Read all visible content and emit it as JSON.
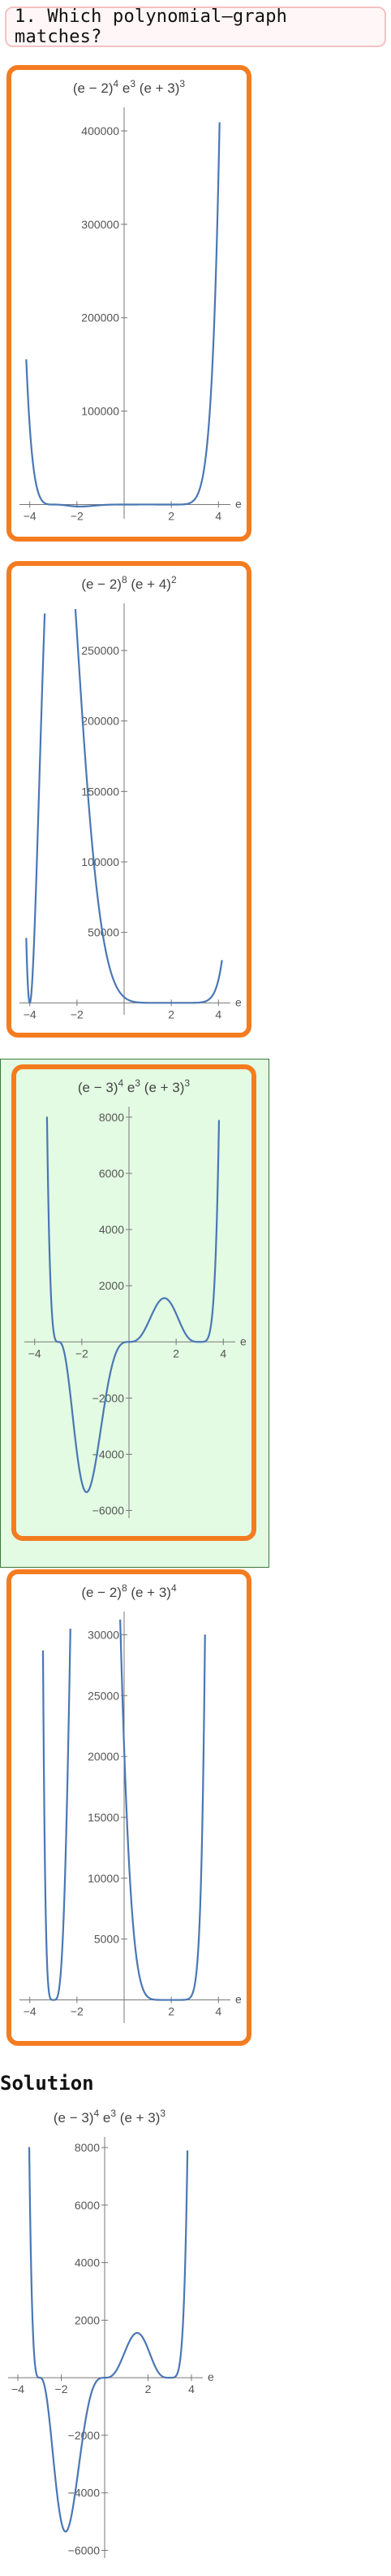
{
  "question": {
    "text": "1. Which polynomial–graph matches?"
  },
  "options": [
    {
      "id": "option-1",
      "selected": false,
      "chart_data": {
        "type": "line",
        "title_base": [
          "(e − 2)",
          " e",
          " (e + 3)"
        ],
        "title_exp": [
          "4",
          "3",
          "3"
        ],
        "xlabel": "e",
        "xlim": [
          -4.3,
          4.3
        ],
        "ylim": [
          -10000,
          420000
        ],
        "xticks": [
          -4,
          -2,
          2,
          4
        ],
        "xtick_labels": [
          "−4",
          "−2",
          "2",
          "4"
        ],
        "yticks": [
          100000,
          200000,
          300000,
          400000
        ],
        "ytick_labels": [
          "100000",
          "200000",
          "300000",
          "400000"
        ],
        "series": [
          {
            "poly": {
              "roots": [
                2,
                0,
                -3
              ],
              "mult": [
                4,
                3,
                3
              ],
              "sign": 1
            }
          }
        ]
      }
    },
    {
      "id": "option-2",
      "selected": false,
      "chart_data": {
        "type": "line",
        "title_base": [
          "(e − 2)",
          " (e + 4)"
        ],
        "title_exp": [
          "8",
          "2"
        ],
        "xlabel": "e",
        "xlim": [
          -4.3,
          4.3
        ],
        "ylim": [
          -5000,
          280000
        ],
        "xticks": [
          -4,
          -2,
          2,
          4
        ],
        "xtick_labels": [
          "−4",
          "−2",
          "2",
          "4"
        ],
        "yticks": [
          50000,
          100000,
          150000,
          200000,
          250000
        ],
        "ytick_labels": [
          "50000",
          "100000",
          "150000",
          "200000",
          "250000"
        ],
        "series": [
          {
            "poly": {
              "roots": [
                2,
                -4
              ],
              "mult": [
                8,
                2
              ],
              "sign": 1
            }
          }
        ]
      }
    },
    {
      "id": "option-3",
      "selected": true,
      "chart_data": {
        "type": "line",
        "title_base": [
          "(e − 3)",
          " e",
          " (e + 3)"
        ],
        "title_exp": [
          "4",
          "3",
          "3"
        ],
        "xlabel": "e",
        "xlim": [
          -4.3,
          4.3
        ],
        "ylim": [
          -6100,
          8200
        ],
        "xticks": [
          -4,
          -2,
          2,
          4
        ],
        "xtick_labels": [
          "−4",
          "−2",
          "2",
          "4"
        ],
        "yticks": [
          -6000,
          -4000,
          -2000,
          2000,
          4000,
          6000,
          8000
        ],
        "ytick_labels": [
          "−6000",
          "−4000",
          "−2000",
          "2000",
          "4000",
          "6000",
          "8000"
        ],
        "series": [
          {
            "poly": {
              "roots": [
                3,
                0,
                -3
              ],
              "mult": [
                4,
                3,
                3
              ],
              "sign": 1
            }
          }
        ]
      }
    },
    {
      "id": "option-4",
      "selected": false,
      "chart_data": {
        "type": "line",
        "title_base": [
          "(e − 2)",
          " (e + 3)"
        ],
        "title_exp": [
          "8",
          "4"
        ],
        "xlabel": "e",
        "xlim": [
          -4.3,
          4.3
        ],
        "ylim": [
          -1500,
          31500
        ],
        "xticks": [
          -4,
          -2,
          2,
          4
        ],
        "xtick_labels": [
          "−4",
          "−2",
          "2",
          "4"
        ],
        "yticks": [
          5000,
          10000,
          15000,
          20000,
          25000,
          30000
        ],
        "ytick_labels": [
          "5000",
          "10000",
          "15000",
          "20000",
          "25000",
          "30000"
        ],
        "series": [
          {
            "poly": {
              "roots": [
                2,
                -3
              ],
              "mult": [
                8,
                4
              ],
              "sign": 1
            }
          }
        ]
      }
    }
  ],
  "solution": {
    "label": "Solution",
    "chart_data": {
      "type": "line",
      "title_base": [
        "(e − 3)",
        " e",
        " (e + 3)"
      ],
      "title_exp": [
        "4",
        "3",
        "3"
      ],
      "xlabel": "e",
      "xlim": [
        -4.3,
        4.3
      ],
      "ylim": [
        -6100,
        8200
      ],
      "xticks": [
        -4,
        -2,
        2,
        4
      ],
      "xtick_labels": [
        "−4",
        "−2",
        "2",
        "4"
      ],
      "yticks": [
        -6000,
        -4000,
        -2000,
        2000,
        4000,
        6000,
        8000
      ],
      "ytick_labels": [
        "−6000",
        "−4000",
        "−2000",
        "2000",
        "4000",
        "6000",
        "8000"
      ],
      "series": [
        {
          "poly": {
            "roots": [
              3,
              0,
              -3
            ],
            "mult": [
              4,
              3,
              3
            ],
            "sign": 1
          }
        }
      ]
    }
  },
  "colors": {
    "option_border": "#f47c20",
    "selected_bg": "#e3fbe3",
    "curve": "#4a77b4"
  }
}
